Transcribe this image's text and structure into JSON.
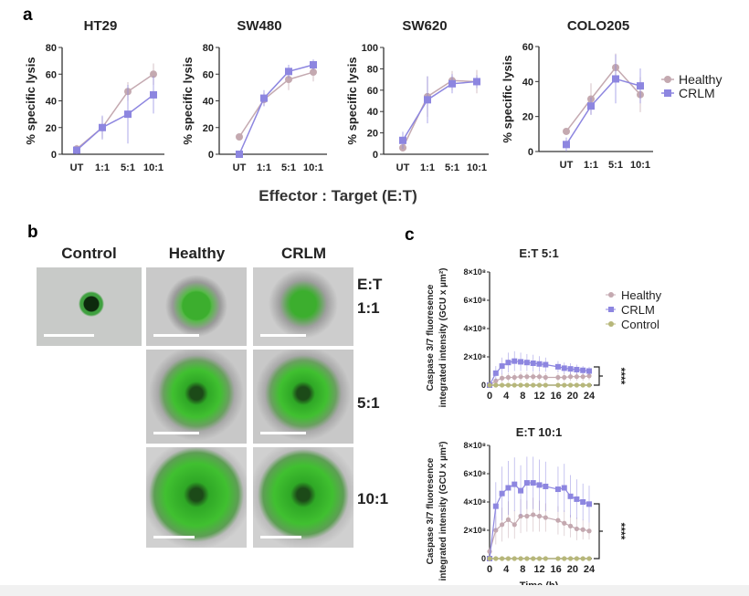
{
  "panels": {
    "a": "a",
    "b": "b",
    "c": "c"
  },
  "a_xlabel": "Effector : Target (E:T)",
  "b": {
    "columns": [
      "Control",
      "Healthy",
      "CRLM"
    ],
    "et_label": "E:T",
    "rows": [
      "1:1",
      "5:1",
      "10:1"
    ]
  },
  "colors": {
    "Healthy": "#c4a9b0",
    "CRLM": "#8d86e0",
    "Control": "#b7b77a"
  },
  "chart_data": [
    {
      "type": "line",
      "title": "HT29",
      "ylabel": "% specific lysis",
      "categories": [
        "UT",
        "1:1",
        "5:1",
        "10:1"
      ],
      "ylim": [
        0,
        80
      ],
      "yticks": [
        0,
        20,
        40,
        60,
        80
      ],
      "series": [
        {
          "name": "Healthy",
          "values": [
            4,
            20,
            47,
            60
          ],
          "err": [
            3,
            8,
            7,
            8
          ]
        },
        {
          "name": "CRLM",
          "values": [
            3,
            20,
            30,
            44.5
          ],
          "err": [
            3,
            9,
            22,
            14
          ]
        }
      ]
    },
    {
      "type": "line",
      "title": "SW480",
      "ylabel": "% specific lysis",
      "categories": [
        "UT",
        "1:1",
        "5:1",
        "10:1"
      ],
      "ylim": [
        0,
        80
      ],
      "yticks": [
        0,
        20,
        40,
        60,
        80
      ],
      "series": [
        {
          "name": "Healthy",
          "values": [
            13,
            41,
            56,
            61.5
          ],
          "err": [
            1,
            5,
            8,
            7
          ]
        },
        {
          "name": "CRLM",
          "values": [
            0,
            42,
            62,
            67
          ],
          "err": [
            1,
            6,
            5,
            4
          ]
        }
      ]
    },
    {
      "type": "line",
      "title": "SW620",
      "ylabel": "% specific lysis",
      "categories": [
        "UT",
        "1:1",
        "5:1",
        "10:1"
      ],
      "ylim": [
        0,
        100
      ],
      "yticks": [
        0,
        20,
        40,
        60,
        80,
        100
      ],
      "series": [
        {
          "name": "Healthy",
          "values": [
            6,
            54,
            69,
            68
          ],
          "err": [
            2,
            19,
            9,
            11
          ]
        },
        {
          "name": "CRLM",
          "values": [
            13,
            51,
            66,
            68
          ],
          "err": [
            8,
            22,
            9,
            6
          ]
        }
      ]
    },
    {
      "type": "line",
      "title": "COLO205",
      "ylabel": "% specific lysis",
      "categories": [
        "UT",
        "1:1",
        "5:1",
        "10:1"
      ],
      "ylim": [
        0,
        60
      ],
      "yticks": [
        0,
        20,
        40,
        60
      ],
      "legend": "right",
      "series": [
        {
          "name": "Healthy",
          "values": [
            11.5,
            30,
            48,
            32.5
          ],
          "err": [
            1,
            9,
            8,
            10
          ]
        },
        {
          "name": "CRLM",
          "values": [
            4,
            26,
            41.5,
            37.5
          ],
          "err": [
            4,
            5,
            14,
            10
          ]
        }
      ]
    },
    {
      "type": "line",
      "title": "E:T 5:1",
      "ylabel": "Caspase 3/7 fluoresence integrated intensity (GCU x µm²)",
      "xlabel": "",
      "xlim": [
        0,
        24
      ],
      "xticks": [
        "0",
        "4",
        "8",
        "12",
        "16",
        "20",
        "24"
      ],
      "ylim": [
        0,
        800000000
      ],
      "yticks": [
        "0",
        "2×10⁸",
        "4×10⁸",
        "6×10⁸",
        "8×10⁸"
      ],
      "legend": "right",
      "significance": "****",
      "x": [
        0,
        1.5,
        3,
        4.5,
        6,
        7.5,
        9,
        10.5,
        12,
        13.5,
        16.5,
        18,
        19.5,
        21,
        22.5,
        24
      ],
      "series": [
        {
          "name": "Healthy",
          "values": [
            0,
            0.3,
            0.5,
            0.55,
            0.55,
            0.6,
            0.6,
            0.6,
            0.6,
            0.55,
            0.55,
            0.55,
            0.6,
            0.6,
            0.6,
            0.65
          ],
          "err": [
            0,
            0.2,
            0.3,
            0.3,
            0.3,
            0.3,
            0.3,
            0.3,
            0.3,
            0.3,
            0.3,
            0.3,
            0.3,
            0.3,
            0.3,
            0.3
          ]
        },
        {
          "name": "CRLM",
          "values": [
            0,
            0.85,
            1.35,
            1.6,
            1.7,
            1.65,
            1.6,
            1.55,
            1.5,
            1.45,
            1.3,
            1.2,
            1.15,
            1.1,
            1.05,
            1.0
          ],
          "err": [
            0,
            0.5,
            0.6,
            0.7,
            0.7,
            0.65,
            0.6,
            0.6,
            0.55,
            0.5,
            0.4,
            0.4,
            0.4,
            0.35,
            0.3,
            0.3
          ]
        },
        {
          "name": "Control",
          "values": [
            0,
            0,
            0,
            0,
            0,
            0,
            0,
            0,
            0,
            0,
            0,
            0,
            0,
            0,
            0,
            0
          ],
          "err": [
            0,
            0,
            0,
            0,
            0,
            0,
            0,
            0,
            0,
            0,
            0,
            0,
            0,
            0,
            0,
            0
          ]
        }
      ]
    },
    {
      "type": "line",
      "title": "E:T 10:1",
      "ylabel": "Caspase 3/7 fluoresence integrated intensity (GCU x µm²)",
      "xlabel": "Time (h)",
      "xlim": [
        0,
        24
      ],
      "xticks": [
        "0",
        "4",
        "8",
        "12",
        "16",
        "20",
        "24"
      ],
      "ylim": [
        0,
        800000000
      ],
      "yticks": [
        "0",
        "2×10⁸",
        "4×10⁸",
        "6×10⁸",
        "8×10⁸"
      ],
      "significance": "****",
      "x": [
        0,
        1.5,
        3,
        4.5,
        6,
        7.5,
        9,
        10.5,
        12,
        13.5,
        16.5,
        18,
        19.5,
        21,
        22.5,
        24
      ],
      "series": [
        {
          "name": "Healthy",
          "values": [
            0.5,
            2.0,
            2.4,
            2.75,
            2.4,
            3.0,
            3.0,
            3.1,
            3.0,
            2.9,
            2.7,
            2.5,
            2.3,
            2.1,
            2.05,
            1.95
          ],
          "err": [
            0.3,
            1.0,
            1.2,
            1.3,
            1.0,
            1.2,
            1.1,
            1.2,
            1.1,
            1.0,
            1.0,
            0.9,
            0.8,
            0.8,
            0.7,
            0.6
          ]
        },
        {
          "name": "CRLM",
          "values": [
            0,
            3.7,
            4.6,
            5.0,
            5.25,
            4.8,
            5.35,
            5.35,
            5.2,
            5.1,
            4.9,
            5.0,
            4.4,
            4.2,
            4.0,
            3.85
          ],
          "err": [
            0,
            1.7,
            1.9,
            1.9,
            1.9,
            1.8,
            1.85,
            1.85,
            1.8,
            1.75,
            1.6,
            1.7,
            1.5,
            1.4,
            1.3,
            1.3
          ]
        },
        {
          "name": "Control",
          "values": [
            0,
            0,
            0,
            0,
            0,
            0,
            0,
            0,
            0,
            0,
            0,
            0,
            0,
            0,
            0,
            0
          ],
          "err": [
            0,
            0,
            0,
            0,
            0,
            0,
            0,
            0,
            0,
            0,
            0,
            0,
            0,
            0,
            0,
            0
          ]
        }
      ]
    }
  ]
}
